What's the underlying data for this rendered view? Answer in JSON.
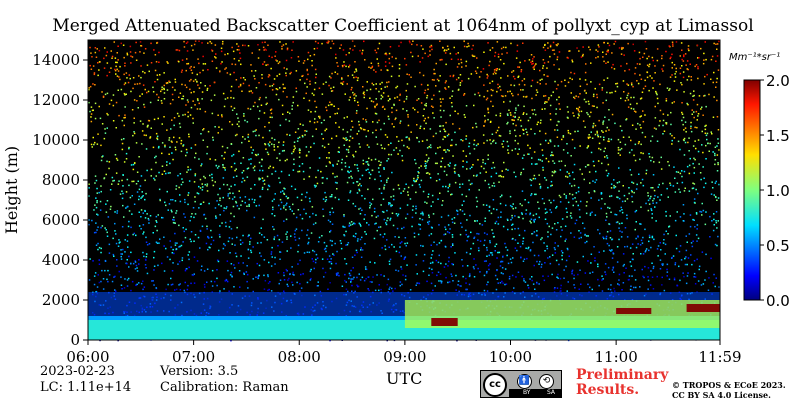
{
  "chart_data": {
    "type": "heatmap",
    "title": "Merged Attenuated Backscatter Coefficient at 1064nm of pollyxt_cyp at Limassol",
    "xlabel": "UTC",
    "ylabel": "Height (m)",
    "x_range": [
      "06:00",
      "11:59"
    ],
    "x_ticks": [
      "06:00",
      "07:00",
      "08:00",
      "09:00",
      "10:00",
      "11:00",
      "11:59"
    ],
    "y_range": [
      0,
      15000
    ],
    "y_ticks": [
      "0",
      "2000",
      "4000",
      "6000",
      "8000",
      "10000",
      "12000",
      "14000"
    ],
    "colorbar": {
      "unit": "Mm⁻¹*sr⁻¹",
      "range": [
        0.0,
        2.0
      ],
      "ticks": [
        "0.0",
        "0.5",
        "1.0",
        "1.5",
        "2.0"
      ],
      "colormap": "jet"
    },
    "features": [
      {
        "description": "aerosol layer",
        "height_m": [
          0,
          1000
        ],
        "time": [
          "06:00",
          "11:59"
        ],
        "level": 0.85
      },
      {
        "description": "elevated aerosol layer",
        "height_m": [
          600,
          2000
        ],
        "time": [
          "09:00",
          "11:59"
        ],
        "level": 1.1
      },
      {
        "description": "cloud base",
        "height_m": [
          700,
          1100
        ],
        "time": [
          "09:15",
          "09:30"
        ],
        "level": 2.0
      },
      {
        "description": "cloud base",
        "height_m": [
          1300,
          1600
        ],
        "time": [
          "11:00",
          "11:20"
        ],
        "level": 2.0
      },
      {
        "description": "cloud base",
        "height_m": [
          1400,
          1800
        ],
        "time": [
          "11:40",
          "11:59"
        ],
        "level": 2.0
      }
    ]
  },
  "footer": {
    "date": "2023-02-23",
    "lc": "LC: 1.11e+14",
    "version": "Version: 3.5",
    "calibration": "Calibration: Raman",
    "license_badge": {
      "cc": "cc",
      "by": "BY",
      "sa": "SA"
    },
    "preliminary": "Preliminary Results.",
    "copyright": "© TROPOS & ECoE 2023. CC BY SA 4.0 License."
  }
}
